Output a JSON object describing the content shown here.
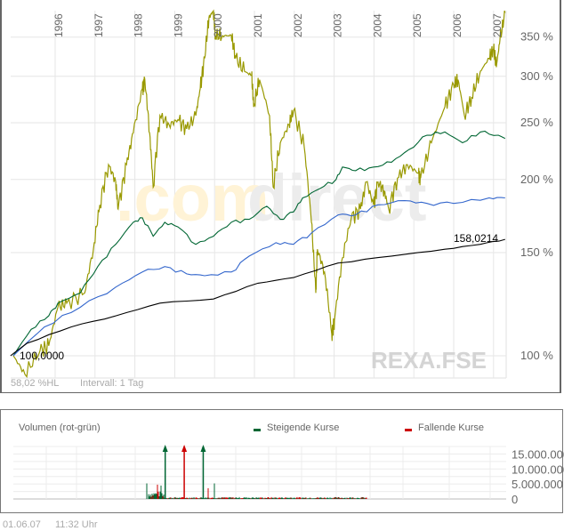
{
  "watermark": {
    "part1": ".com",
    "part2": "direct",
    "symbol": "REXA.FSE"
  },
  "footer_main": {
    "hl": "58,02 %HL",
    "interval": "Intervall: 1 Tag"
  },
  "timestamp": {
    "date": "01.06.07",
    "time": "11:32 Uhr"
  },
  "chart_data": [
    {
      "type": "line",
      "title": "",
      "yscale": "log",
      "ylim": [
        88,
        395
      ],
      "xlim": [
        1994.85,
        2007.35
      ],
      "x_ticks": [
        "1996",
        "1997",
        "1998",
        "1999",
        "2000",
        "2001",
        "2002",
        "2003",
        "2004",
        "2005",
        "2006",
        "2007"
      ],
      "y_ticks": [
        {
          "value": 100,
          "label": "100 %"
        },
        {
          "value": 150,
          "label": "150 %"
        },
        {
          "value": 200,
          "label": "200 %"
        },
        {
          "value": 250,
          "label": "250 %"
        },
        {
          "value": 300,
          "label": "300 %"
        },
        {
          "value": 350,
          "label": "350 %"
        }
      ],
      "grid": true,
      "start_label": "100,0000",
      "end_label": "158,0214",
      "series": [
        {
          "name": "olive",
          "color": "#999900",
          "points": [
            [
              1994.95,
              100
            ],
            [
              1995.24,
              93
            ],
            [
              1995.62,
              102
            ],
            [
              1995.84,
              104
            ],
            [
              1996.07,
              121
            ],
            [
              1996.29,
              123
            ],
            [
              1996.74,
              128
            ],
            [
              1996.96,
              152
            ],
            [
              1997.12,
              181
            ],
            [
              1997.34,
              212
            ],
            [
              1997.52,
              198
            ],
            [
              1997.58,
              178
            ],
            [
              1997.79,
              212
            ],
            [
              1997.96,
              240
            ],
            [
              1998.19,
              286
            ],
            [
              1998.25,
              296
            ],
            [
              1998.37,
              240
            ],
            [
              1998.46,
              194
            ],
            [
              1998.63,
              257
            ],
            [
              1998.86,
              248
            ],
            [
              1999.08,
              253
            ],
            [
              1999.3,
              244
            ],
            [
              1999.53,
              257
            ],
            [
              1999.64,
              286
            ],
            [
              1999.75,
              322
            ],
            [
              1999.86,
              378
            ],
            [
              1999.97,
              388
            ],
            [
              2000.02,
              352
            ],
            [
              2000.2,
              352
            ],
            [
              2000.42,
              352
            ],
            [
              2000.53,
              322
            ],
            [
              2000.75,
              306
            ],
            [
              2000.93,
              301
            ],
            [
              2000.98,
              266
            ],
            [
              2001.13,
              296
            ],
            [
              2001.38,
              257
            ],
            [
              2001.47,
              194
            ],
            [
              2001.65,
              231
            ],
            [
              2001.87,
              248
            ],
            [
              2001.98,
              262
            ],
            [
              2002.25,
              227
            ],
            [
              2002.43,
              169
            ],
            [
              2002.54,
              128
            ],
            [
              2002.58,
              152
            ],
            [
              2002.76,
              139
            ],
            [
              2002.94,
              109
            ],
            [
              2003.01,
              115
            ],
            [
              2003.21,
              147
            ],
            [
              2003.43,
              172
            ],
            [
              2003.66,
              178
            ],
            [
              2003.81,
              198
            ],
            [
              2003.99,
              181
            ],
            [
              2004.1,
              198
            ],
            [
              2004.26,
              191
            ],
            [
              2004.37,
              178
            ],
            [
              2004.59,
              201
            ],
            [
              2004.84,
              212
            ],
            [
              2005.11,
              205
            ],
            [
              2005.17,
              201
            ],
            [
              2005.44,
              231
            ],
            [
              2005.78,
              266
            ],
            [
              2006.0,
              290
            ],
            [
              2006.11,
              296
            ],
            [
              2006.27,
              257
            ],
            [
              2006.45,
              276
            ],
            [
              2006.67,
              306
            ],
            [
              2006.89,
              322
            ],
            [
              2007.0,
              334
            ],
            [
              2007.07,
              311
            ],
            [
              2007.16,
              346
            ],
            [
              2007.29,
              385
            ]
          ]
        },
        {
          "name": "green",
          "color": "#006633",
          "points": [
            [
              1994.95,
              100
            ],
            [
              1995.4,
              111
            ],
            [
              1995.84,
              117
            ],
            [
              1996.07,
              123
            ],
            [
              1996.63,
              128
            ],
            [
              1997.07,
              142
            ],
            [
              1997.52,
              155
            ],
            [
              1997.96,
              169
            ],
            [
              1998.19,
              172
            ],
            [
              1998.46,
              160
            ],
            [
              1998.75,
              169
            ],
            [
              1999.08,
              166
            ],
            [
              1999.53,
              155
            ],
            [
              1999.97,
              160
            ],
            [
              2000.42,
              169
            ],
            [
              2000.87,
              171
            ],
            [
              2001.31,
              180
            ],
            [
              2001.65,
              171
            ],
            [
              2001.98,
              176
            ],
            [
              2002.21,
              186
            ],
            [
              2002.65,
              193
            ],
            [
              2003.05,
              200
            ],
            [
              2003.21,
              210
            ],
            [
              2003.54,
              207
            ],
            [
              2003.99,
              210
            ],
            [
              2004.44,
              214
            ],
            [
              2004.88,
              225
            ],
            [
              2005.33,
              238
            ],
            [
              2005.78,
              241
            ],
            [
              2006.22,
              231
            ],
            [
              2006.67,
              241
            ],
            [
              2007.12,
              238
            ],
            [
              2007.29,
              235
            ]
          ]
        },
        {
          "name": "blue",
          "color": "#3366cc",
          "points": [
            [
              1994.95,
              100
            ],
            [
              1995.73,
              112
            ],
            [
              1996.63,
              121
            ],
            [
              1997.52,
              131
            ],
            [
              1998.19,
              139
            ],
            [
              1998.75,
              142
            ],
            [
              1999.3,
              138
            ],
            [
              1999.75,
              137
            ],
            [
              2000.42,
              139
            ],
            [
              2000.87,
              148
            ],
            [
              2001.54,
              156
            ],
            [
              2001.98,
              155
            ],
            [
              2002.43,
              162
            ],
            [
              2003.1,
              174
            ],
            [
              2003.54,
              174
            ],
            [
              2004.1,
              181
            ],
            [
              2004.77,
              184
            ],
            [
              2005.33,
              182
            ],
            [
              2006.0,
              182
            ],
            [
              2006.89,
              186
            ],
            [
              2007.29,
              186
            ]
          ]
        },
        {
          "name": "REXA.FSE",
          "color": "#000000",
          "points": [
            [
              1994.88,
              100
            ],
            [
              1995.29,
              105
            ],
            [
              1996.4,
              112
            ],
            [
              1997.52,
              117
            ],
            [
              1998.63,
              123
            ],
            [
              1999.97,
              125
            ],
            [
              2001.09,
              133
            ],
            [
              2001.98,
              136
            ],
            [
              2003.1,
              144
            ],
            [
              2004.44,
              148
            ],
            [
              2005.78,
              152
            ],
            [
              2006.67,
              155
            ],
            [
              2007.29,
              158.02
            ]
          ]
        }
      ]
    },
    {
      "type": "bar",
      "title": "Volumen (rot-grün)",
      "legend": [
        {
          "label": "Steigende Kurse",
          "color": "#006633"
        },
        {
          "label": "Fallende Kurse",
          "color": "#cc0000"
        }
      ],
      "legend_position": "top-right",
      "ylim": [
        0,
        17500000
      ],
      "y_ticks": [
        {
          "value": 0,
          "label": "0"
        },
        {
          "value": 5000000,
          "label": "5.000.000"
        },
        {
          "value": 10000000,
          "label": "10.000.000"
        },
        {
          "value": 15000000,
          "label": "15.000.000"
        }
      ],
      "x_range": [
        1998.3,
        2003.8
      ],
      "spikes": [
        {
          "x": 1998.72,
          "value": 17500000,
          "color": "#006633",
          "clipped": true
        },
        {
          "x": 1999.2,
          "value": 17500000,
          "color": "#cc0000",
          "clipped": true
        },
        {
          "x": 1999.68,
          "value": 17500000,
          "color": "#006633",
          "clipped": true
        }
      ],
      "typical_volume": 400000
    }
  ]
}
